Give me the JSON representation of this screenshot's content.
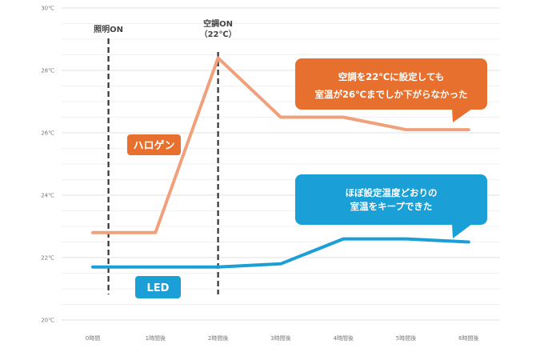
{
  "chart_data": {
    "type": "line",
    "title": "",
    "xlabel": "",
    "ylabel": "",
    "x": [
      "0時間",
      "1時間後",
      "2時間後",
      "3時間後",
      "4時間後",
      "5時間後",
      "6時間後"
    ],
    "ylim": [
      20,
      30
    ],
    "yticks": [
      20,
      22,
      24,
      26,
      28,
      30
    ],
    "ytick_labels": [
      "20℃",
      "22℃",
      "24℃",
      "26℃",
      "28℃",
      "30℃"
    ],
    "grid": true,
    "series": [
      {
        "name": "ハロゲン",
        "color": "#f0a07a",
        "label_color": "#e8702f",
        "values": [
          22.8,
          22.8,
          28.4,
          26.5,
          26.5,
          26.1,
          26.1
        ]
      },
      {
        "name": "LED",
        "color": "#1a9fd6",
        "label_color": "#1a9fd6",
        "values": [
          21.7,
          21.7,
          21.7,
          21.8,
          22.6,
          22.6,
          22.5
        ]
      }
    ],
    "markers": [
      {
        "x": 0.25,
        "label": [
          "照明ON"
        ]
      },
      {
        "x": 2,
        "label": [
          "空調ON",
          "（22℃）"
        ]
      }
    ],
    "callouts": [
      {
        "series": "ハロゲン",
        "color": "#e8702f",
        "lines": [
          "空調を22℃に設定しても",
          "室温が26℃までしか下がらなかった"
        ]
      },
      {
        "series": "LED",
        "color": "#1a9fd6",
        "lines": [
          "ほぼ設定温度どおりの",
          "室温をキープできた"
        ]
      }
    ]
  }
}
